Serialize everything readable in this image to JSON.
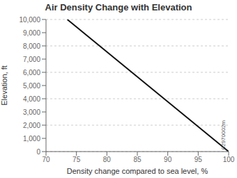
{
  "chart_data": {
    "type": "line",
    "title": "Air Density Change with Elevation",
    "xlabel": "Density change compared to sea level, %",
    "ylabel": "Elevation, ft",
    "x": [
      73.5,
      100.0
    ],
    "series": [
      {
        "values": [
          10000,
          0
        ],
        "color": "#111111"
      }
    ],
    "xlim": [
      70,
      100
    ],
    "ylim": [
      0,
      10000
    ],
    "xticks": [
      70,
      75,
      80,
      85,
      90,
      95,
      100
    ],
    "yticks": [
      0,
      {
        "value": 1000,
        "label": "1,000"
      },
      {
        "value": 2000,
        "label": "2,000"
      },
      {
        "value": 3000,
        "label": "3,000"
      },
      {
        "value": 4000,
        "label": "4,000"
      },
      {
        "value": 5000,
        "label": "5,000"
      },
      {
        "value": 6000,
        "label": "6,000"
      },
      {
        "value": 7000,
        "label": "7,000"
      },
      {
        "value": 8000,
        "label": "8,000"
      },
      {
        "value": 9000,
        "label": "9,000"
      },
      {
        "value": 10000,
        "label": "10,000"
      }
    ],
    "grid": true,
    "annotation": "02970002m"
  }
}
